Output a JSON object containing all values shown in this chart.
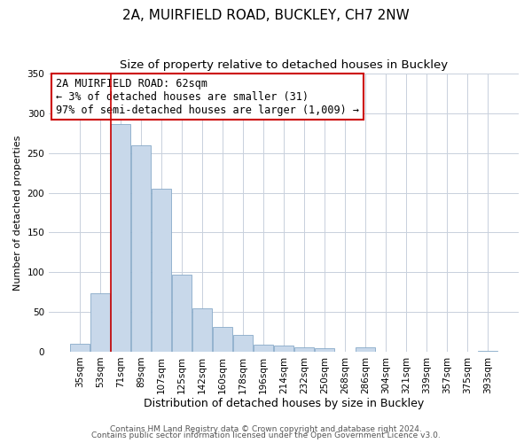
{
  "title": "2A, MUIRFIELD ROAD, BUCKLEY, CH7 2NW",
  "subtitle": "Size of property relative to detached houses in Buckley",
  "xlabel": "Distribution of detached houses by size in Buckley",
  "ylabel": "Number of detached properties",
  "bar_labels": [
    "35sqm",
    "53sqm",
    "71sqm",
    "89sqm",
    "107sqm",
    "125sqm",
    "142sqm",
    "160sqm",
    "178sqm",
    "196sqm",
    "214sqm",
    "232sqm",
    "250sqm",
    "268sqm",
    "286sqm",
    "304sqm",
    "321sqm",
    "339sqm",
    "357sqm",
    "375sqm",
    "393sqm"
  ],
  "bar_values": [
    10,
    73,
    287,
    260,
    205,
    97,
    55,
    31,
    21,
    9,
    8,
    5,
    4,
    0,
    5,
    0,
    0,
    0,
    0,
    0,
    1
  ],
  "bar_color": "#c8d8ea",
  "bar_edgecolor": "#88aac8",
  "ylim": [
    0,
    350
  ],
  "yticks": [
    0,
    50,
    100,
    150,
    200,
    250,
    300,
    350
  ],
  "property_line_x": 1.5,
  "property_line_color": "#cc0000",
  "annotation_title": "2A MUIRFIELD ROAD: 62sqm",
  "annotation_line1": "← 3% of detached houses are smaller (31)",
  "annotation_line2": "97% of semi-detached houses are larger (1,009) →",
  "annotation_box_color": "#ffffff",
  "annotation_box_edgecolor": "#cc0000",
  "footer1": "Contains HM Land Registry data © Crown copyright and database right 2024.",
  "footer2": "Contains public sector information licensed under the Open Government Licence v3.0.",
  "background_color": "#ffffff",
  "grid_color": "#c8d0dc",
  "title_fontsize": 11,
  "subtitle_fontsize": 9.5,
  "xlabel_fontsize": 9,
  "ylabel_fontsize": 8,
  "tick_fontsize": 7.5,
  "annotation_fontsize": 8.5,
  "footer_fontsize": 6.5
}
